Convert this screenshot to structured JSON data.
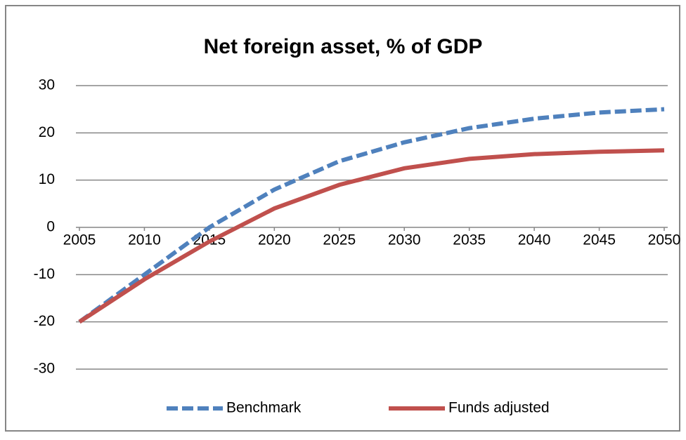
{
  "chart_data": {
    "type": "line",
    "title": "Net foreign asset, % of GDP",
    "x": [
      2005,
      2010,
      2015,
      2020,
      2025,
      2030,
      2035,
      2040,
      2045,
      2050
    ],
    "series": [
      {
        "name": "Benchmark",
        "color": "#4f81bd",
        "style": "dashed",
        "values": [
          -20,
          -10,
          0,
          8,
          14,
          18,
          21,
          23,
          24.3,
          25
        ]
      },
      {
        "name": "Funds adjusted",
        "color": "#c0504d",
        "style": "solid",
        "values": [
          -20,
          -11,
          -3,
          4,
          9,
          12.5,
          14.5,
          15.5,
          16,
          16.3
        ]
      }
    ],
    "xlim": [
      2005,
      2050
    ],
    "xticks": [
      2005,
      2010,
      2015,
      2020,
      2025,
      2030,
      2035,
      2040,
      2045,
      2050
    ],
    "ylim": [
      -30,
      30
    ],
    "yticks": [
      -30,
      -20,
      -10,
      0,
      10,
      20,
      30
    ],
    "grid": true,
    "legend": "bottom"
  }
}
